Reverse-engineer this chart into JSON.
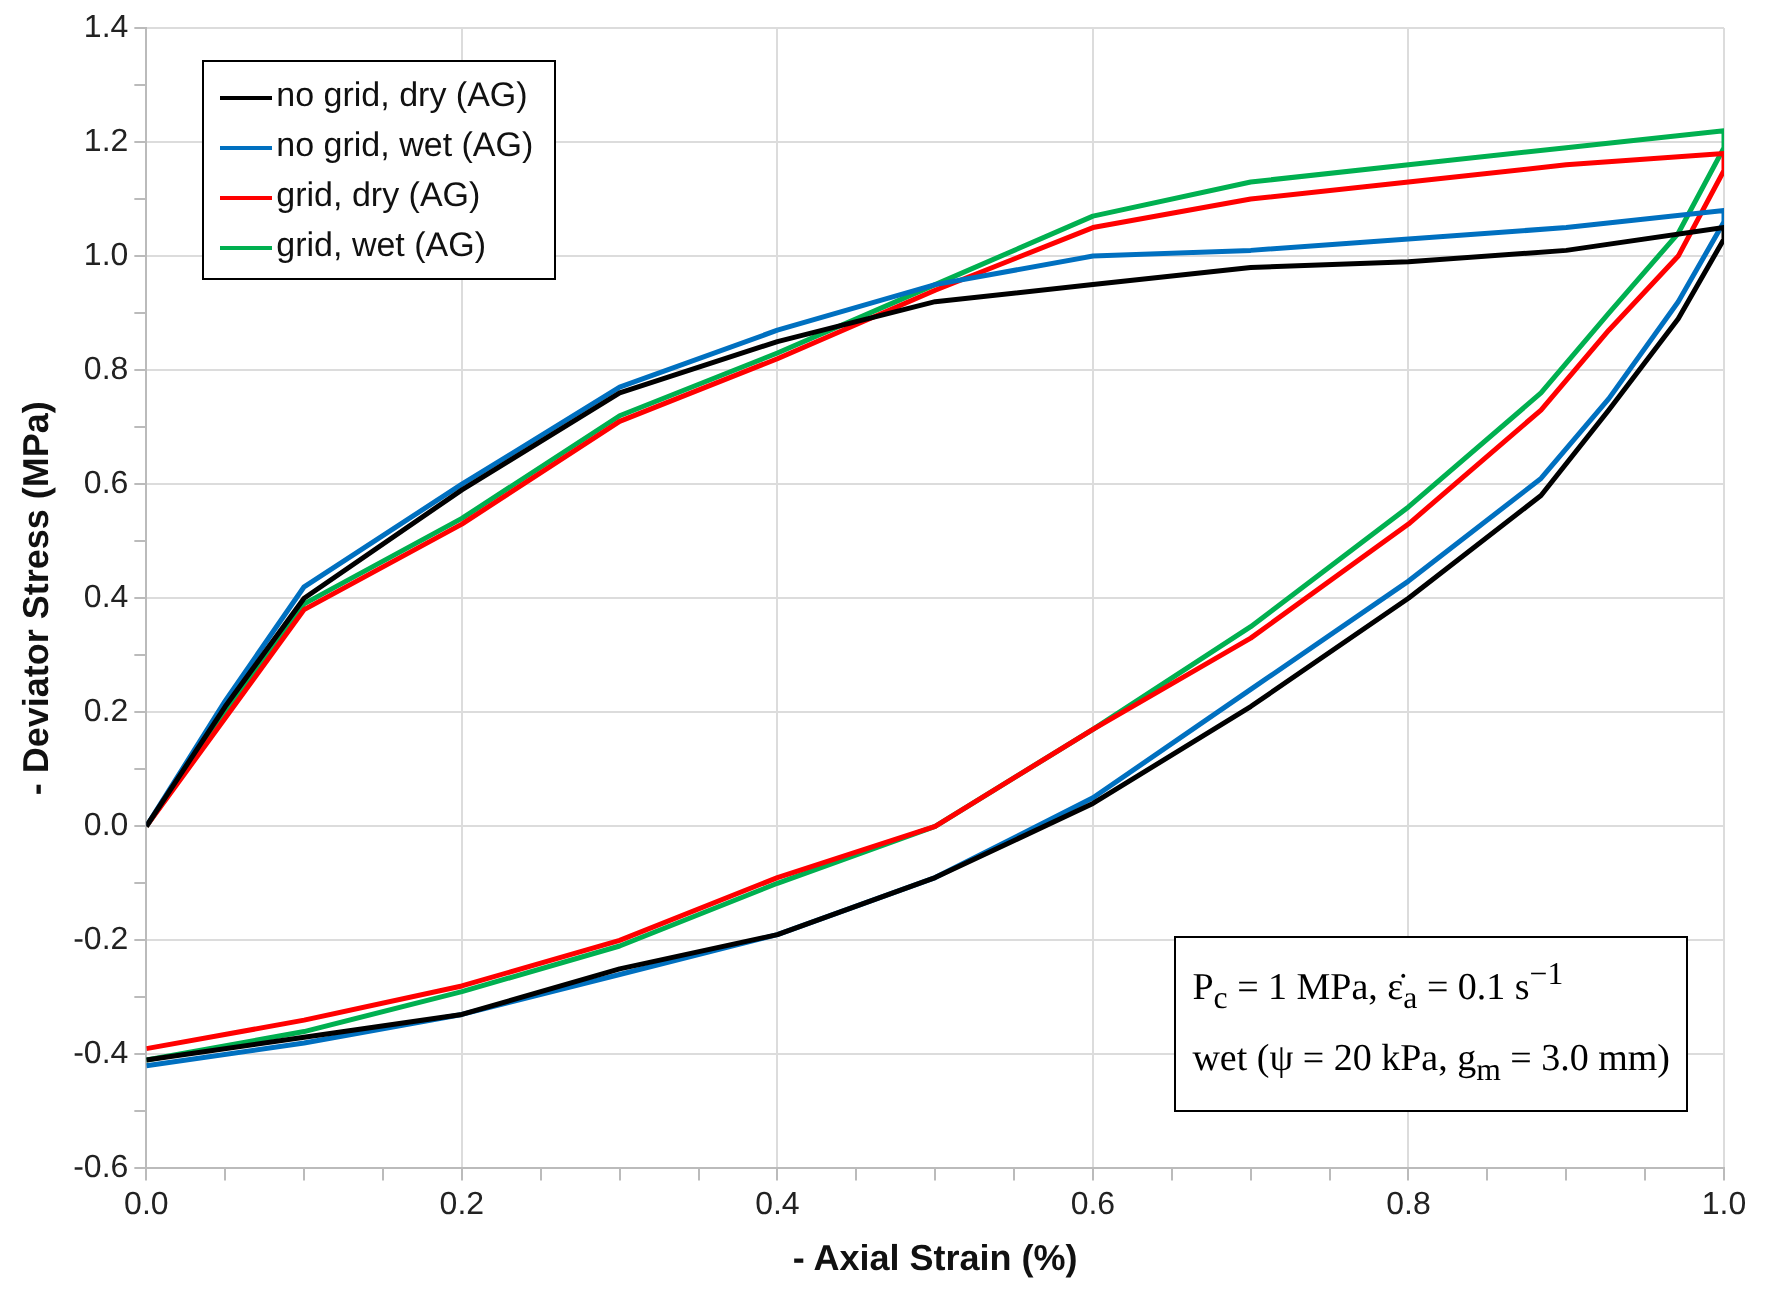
{
  "chart_data": {
    "type": "line",
    "xlabel": "- Axial Strain (%)",
    "ylabel": "- Deviator Stress (MPa)",
    "xlim": [
      0,
      1
    ],
    "xticks": [
      {
        "value": 0,
        "label": "0.0"
      },
      {
        "value": 0.05,
        "label": null
      },
      {
        "value": 0.1,
        "label": null
      },
      {
        "value": 0.15,
        "label": null
      },
      {
        "value": 0.2,
        "label": "0.2"
      },
      {
        "value": 0.25,
        "label": null
      },
      {
        "value": 0.3,
        "label": null
      },
      {
        "value": 0.35,
        "label": null
      },
      {
        "value": 0.4,
        "label": "0.4"
      },
      {
        "value": 0.45,
        "label": null
      },
      {
        "value": 0.5,
        "label": null
      },
      {
        "value": 0.55,
        "label": null
      },
      {
        "value": 0.6,
        "label": "0.6"
      },
      {
        "value": 0.65,
        "label": null
      },
      {
        "value": 0.7,
        "label": null
      },
      {
        "value": 0.75,
        "label": null
      },
      {
        "value": 0.8,
        "label": "0.8"
      },
      {
        "value": 0.85,
        "label": null
      },
      {
        "value": 0.9,
        "label": null
      },
      {
        "value": 0.95,
        "label": null
      },
      {
        "value": 1,
        "label": "1.0"
      }
    ],
    "ylim": [
      -0.6,
      1.4
    ],
    "yticks": [
      {
        "value": -0.6,
        "label": "-0.6"
      },
      {
        "value": -0.5,
        "label": null
      },
      {
        "value": -0.4,
        "label": "-0.4"
      },
      {
        "value": -0.3,
        "label": null
      },
      {
        "value": -0.2,
        "label": "-0.2"
      },
      {
        "value": -0.1,
        "label": null
      },
      {
        "value": 0,
        "label": "0.0"
      },
      {
        "value": 0.1,
        "label": null
      },
      {
        "value": 0.2,
        "label": "0.2"
      },
      {
        "value": 0.3,
        "label": null
      },
      {
        "value": 0.4,
        "label": "0.4"
      },
      {
        "value": 0.5,
        "label": null
      },
      {
        "value": 0.6,
        "label": "0.6"
      },
      {
        "value": 0.7,
        "label": null
      },
      {
        "value": 0.8,
        "label": "0.8"
      },
      {
        "value": 0.9,
        "label": null
      },
      {
        "value": 1,
        "label": "1.0"
      },
      {
        "value": 1.1,
        "label": null
      },
      {
        "value": 1.2,
        "label": "1.2"
      },
      {
        "value": 1.3,
        "label": null
      },
      {
        "value": 1.4,
        "label": "1.4"
      }
    ],
    "grid": true,
    "legend": "top left",
    "marker": "none",
    "line_style": "solid",
    "annotations": [
      "P$_{c}$ = 1 MPa,  ε̇$_{a}$ = 0.1 s$^{−1}$",
      "wet (ψ = 20 kPa,  g$_{m}$ = 3.0 mm)"
    ],
    "series": [
      {
        "name": "no grid, dry (AG)",
        "color": "#000000",
        "x": [
          0,
          0.05,
          0.1,
          0.2,
          0.3,
          0.4,
          0.5,
          0.6,
          0.7,
          0.8,
          0.9,
          1,
          1,
          0.971,
          0.927,
          0.884,
          0.8,
          0.7,
          0.6,
          0.5,
          0.4,
          0.3,
          0.2,
          0.1,
          0
        ],
        "values": [
          0,
          0.21,
          0.4,
          0.59,
          0.76,
          0.85,
          0.92,
          0.95,
          0.98,
          0.99,
          1.01,
          1.05,
          1.03,
          0.89,
          0.73,
          0.58,
          0.4,
          0.21,
          0.04,
          -0.09,
          -0.19,
          -0.25,
          -0.33,
          -0.37,
          -0.41
        ]
      },
      {
        "name": "no grid, wet (AG)",
        "color": "#0070c0",
        "x": [
          0,
          0.05,
          0.1,
          0.2,
          0.3,
          0.4,
          0.5,
          0.6,
          0.7,
          0.8,
          0.9,
          1,
          1,
          0.971,
          0.927,
          0.884,
          0.8,
          0.7,
          0.6,
          0.5,
          0.4,
          0.3,
          0.2,
          0.1,
          0
        ],
        "values": [
          0,
          0.22,
          0.42,
          0.6,
          0.77,
          0.87,
          0.95,
          1.0,
          1.01,
          1.03,
          1.05,
          1.08,
          1.06,
          0.92,
          0.75,
          0.61,
          0.43,
          0.24,
          0.05,
          -0.09,
          -0.19,
          -0.26,
          -0.33,
          -0.38,
          -0.42
        ]
      },
      {
        "name": "grid, dry (AG)",
        "color": "#ff0000",
        "x": [
          0,
          0.05,
          0.1,
          0.2,
          0.3,
          0.4,
          0.5,
          0.6,
          0.7,
          0.8,
          0.9,
          1,
          1,
          0.971,
          0.927,
          0.884,
          0.8,
          0.7,
          0.6,
          0.5,
          0.4,
          0.3,
          0.2,
          0.1,
          0
        ],
        "values": [
          0,
          0.19,
          0.38,
          0.53,
          0.71,
          0.82,
          0.94,
          1.05,
          1.1,
          1.13,
          1.16,
          1.18,
          1.15,
          1.0,
          0.87,
          0.73,
          0.53,
          0.33,
          0.17,
          0.0,
          -0.09,
          -0.2,
          -0.28,
          -0.34,
          -0.39
        ]
      },
      {
        "name": "grid, wet (AG)",
        "color": "#00b050",
        "x": [
          0,
          0.05,
          0.1,
          0.2,
          0.3,
          0.4,
          0.5,
          0.6,
          0.7,
          0.8,
          0.9,
          1,
          1,
          0.971,
          0.927,
          0.884,
          0.8,
          0.7,
          0.6,
          0.5,
          0.4,
          0.3,
          0.2,
          0.1,
          0
        ],
        "values": [
          0,
          0.2,
          0.39,
          0.54,
          0.72,
          0.83,
          0.95,
          1.07,
          1.13,
          1.16,
          1.19,
          1.22,
          1.19,
          1.04,
          0.9,
          0.76,
          0.56,
          0.35,
          0.17,
          0.0,
          -0.1,
          -0.21,
          -0.29,
          -0.36,
          -0.41
        ]
      }
    ]
  }
}
